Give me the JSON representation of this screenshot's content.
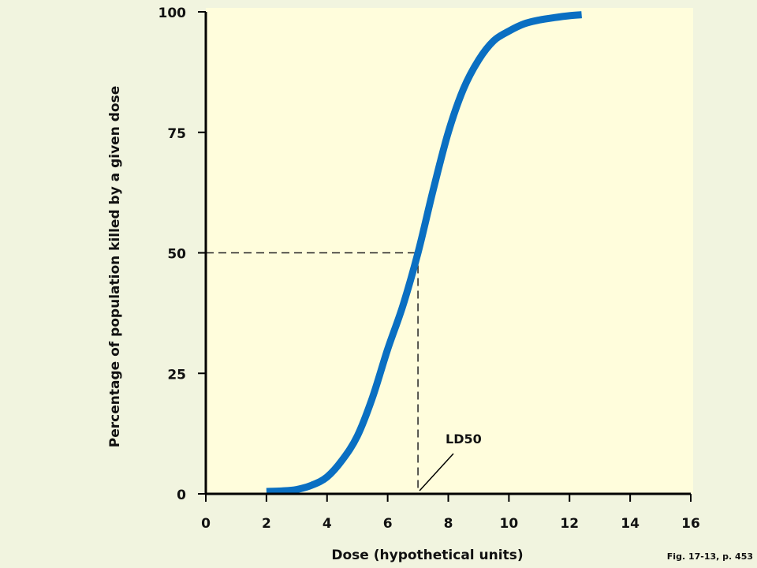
{
  "chart_data": {
    "type": "line",
    "title": "",
    "xlabel": "Dose (hypothetical units)",
    "ylabel": "Percentage of population killed by a given dose",
    "xlim": [
      0,
      16
    ],
    "ylim": [
      0,
      100
    ],
    "x_ticks": [
      "0",
      "2",
      "4",
      "6",
      "8",
      "10",
      "12",
      "14",
      "16"
    ],
    "y_ticks": [
      "0",
      "25",
      "50",
      "75",
      "100"
    ],
    "grid": false,
    "legend": "none",
    "series": [
      {
        "color": "#0a6fc2",
        "x": [
          2,
          2.5,
          3,
          3.5,
          4,
          4.5,
          5,
          5.5,
          6,
          6.5,
          7,
          7.5,
          8,
          8.5,
          9,
          9.5,
          10,
          10.5,
          11,
          11.5,
          12,
          12.4
        ],
        "y": [
          0.5,
          0.6,
          0.9,
          1.8,
          3.5,
          7,
          12,
          20,
          30,
          39,
          50,
          63,
          75,
          84,
          90,
          94,
          96,
          97.5,
          98.3,
          98.8,
          99.2,
          99.4
        ]
      }
    ],
    "reference_point": {
      "x": 7,
      "y": 50
    },
    "annotations": [
      {
        "text": "LD50",
        "x": 7,
        "y": 0
      }
    ],
    "caption": "Fig. 17-13, p. 453",
    "colors": {
      "plot_background": "#fffddc",
      "page_background": "#f1f4df",
      "axis": "#000000"
    }
  }
}
